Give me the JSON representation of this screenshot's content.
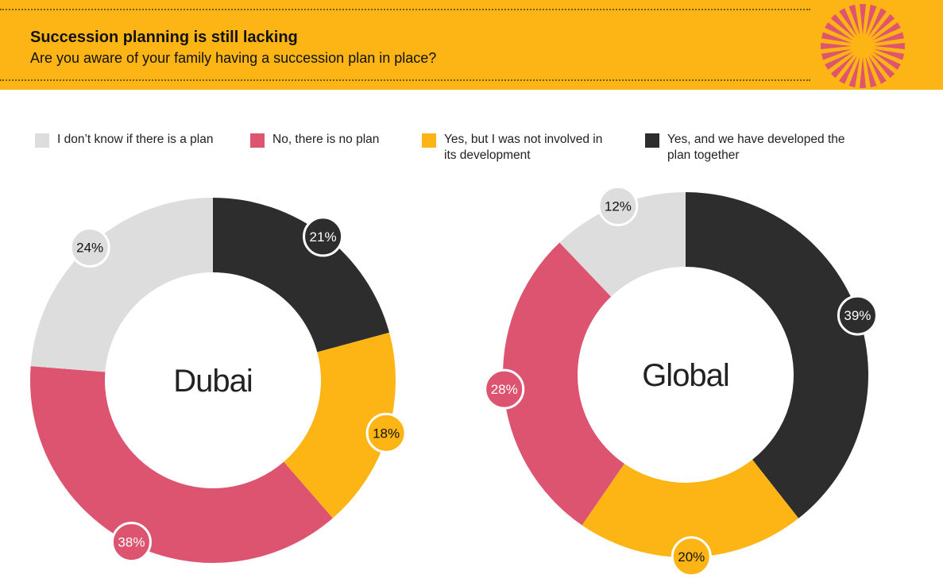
{
  "header": {
    "title": "Succession planning is still lacking",
    "subtitle": "Are you aware of your family having a succession plan in place?"
  },
  "colors": {
    "banner": "#FDB515",
    "burst": "#E0556E",
    "dont_know": "#DDDDDD",
    "no_plan": "#DD5470",
    "yes_not_involved": "#FDB515",
    "yes_together": "#2D2D2D"
  },
  "legend": [
    {
      "label_lines": [
        "I don’t know if there is a plan"
      ],
      "color": "#DDDDDD"
    },
    {
      "label_lines": [
        "No, there is no plan"
      ],
      "color": "#DD5470"
    },
    {
      "label_lines": [
        "Yes, but I was not involved in",
        "its development"
      ],
      "color": "#FDB515"
    },
    {
      "label_lines": [
        "Yes, and we have developed the",
        "plan together"
      ],
      "color": "#2D2D2D"
    }
  ],
  "chart_data": [
    {
      "type": "pie",
      "title": "Dubai",
      "categories": [
        "Yes, and we have developed the plan together",
        "Yes, but I was not involved in its development",
        "No, there is no plan",
        "I don’t know if there is a plan"
      ],
      "values": [
        21,
        18,
        38,
        24
      ],
      "labels": [
        "21%",
        "18%",
        "38%",
        "24%"
      ],
      "colors": [
        "#2D2D2D",
        "#FDB515",
        "#DD5470",
        "#DDDDDD"
      ],
      "donut": true
    },
    {
      "type": "pie",
      "title": "Global",
      "categories": [
        "Yes, and we have developed the plan together",
        "Yes, but I was not involved in its development",
        "No, there is no plan",
        "I don’t know if there is a plan"
      ],
      "values": [
        39,
        20,
        28,
        12
      ],
      "labels": [
        "39%",
        "20%",
        "28%",
        "12%"
      ],
      "colors": [
        "#2D2D2D",
        "#FDB515",
        "#DD5470",
        "#DDDDDD"
      ],
      "donut": true
    }
  ]
}
